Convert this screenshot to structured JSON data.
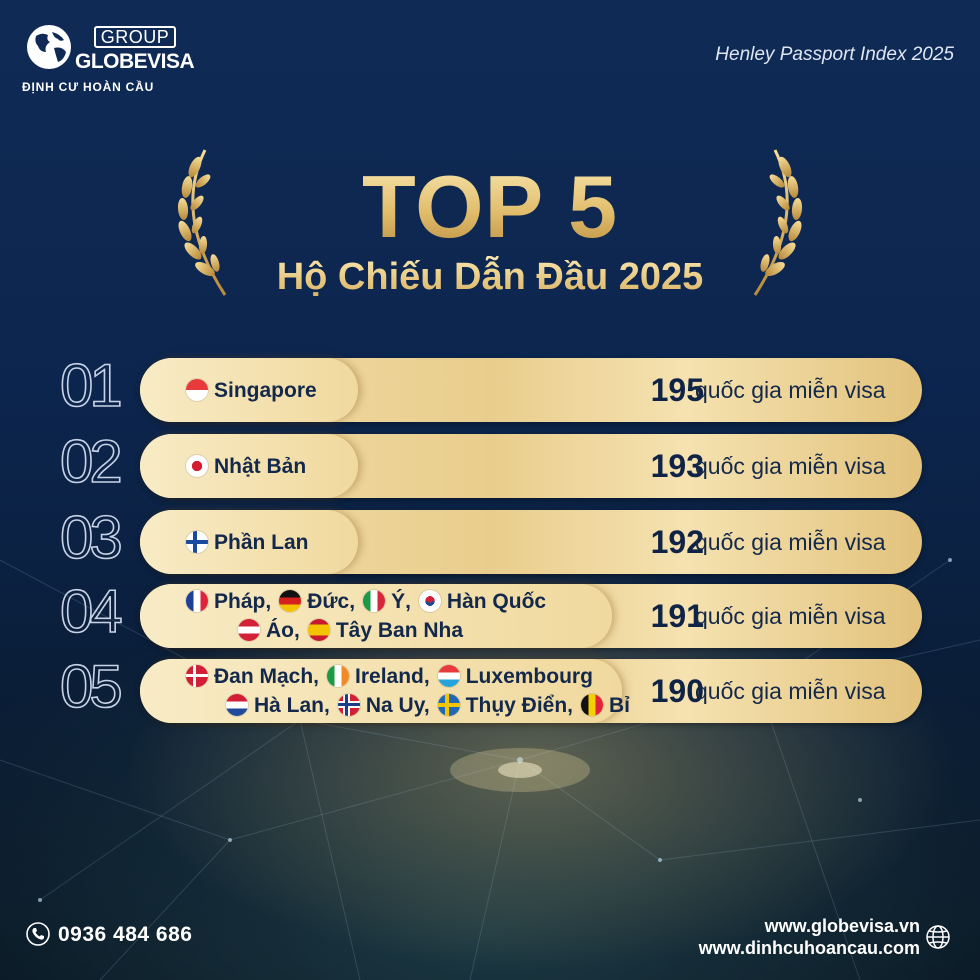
{
  "brand": {
    "group": "GROUP",
    "name": "GLOBEVISA",
    "tagline": "ĐỊNH CƯ HOÀN CẦU"
  },
  "source": "Henley Passport Index 2025",
  "title": {
    "main": "TOP 5",
    "sub": "Hộ Chiếu Dẫn Đầu 2025"
  },
  "suffix": "quốc gia miễn visa",
  "ranks": [
    {
      "rank": "01",
      "count": "195",
      "lines": [
        [
          {
            "flag": "sg",
            "name": "Singapore"
          }
        ]
      ]
    },
    {
      "rank": "02",
      "count": "193",
      "lines": [
        [
          {
            "flag": "jp",
            "name": "Nhật Bản"
          }
        ]
      ]
    },
    {
      "rank": "03",
      "count": "192",
      "lines": [
        [
          {
            "flag": "fi",
            "name": "Phần Lan"
          }
        ]
      ]
    },
    {
      "rank": "04",
      "count": "191",
      "lines": [
        [
          {
            "flag": "fr",
            "name": "Pháp,"
          },
          {
            "flag": "de",
            "name": "Đức,"
          },
          {
            "flag": "it",
            "name": "Ý,"
          },
          {
            "flag": "kr",
            "name": "Hàn Quốc"
          }
        ],
        [
          {
            "flag": "at",
            "name": "Áo,"
          },
          {
            "flag": "es",
            "name": "Tây Ban Nha"
          }
        ]
      ]
    },
    {
      "rank": "05",
      "count": "190",
      "lines": [
        [
          {
            "flag": "dk",
            "name": "Đan Mạch,"
          },
          {
            "flag": "ie",
            "name": "Ireland,"
          },
          {
            "flag": "lu",
            "name": "Luxembourg"
          }
        ],
        [
          {
            "flag": "nl",
            "name": "Hà Lan,"
          },
          {
            "flag": "no",
            "name": "Na Uy,"
          },
          {
            "flag": "se",
            "name": "Thụy Điển,"
          },
          {
            "flag": "be",
            "name": "Bỉ"
          }
        ]
      ]
    }
  ],
  "footer": {
    "phone": "0936 484 686",
    "website1": "www.globevisa.vn",
    "website2": "www.dinhcuhoancau.com"
  },
  "colors": {
    "background": "#0d2650",
    "gold": "#e3c57d",
    "pill": "#f0d99e",
    "text_dark": "#13284a"
  },
  "icons": [
    "globe-logo-icon",
    "laurel-left-icon",
    "laurel-right-icon",
    "phone-icon",
    "web-globe-icon"
  ]
}
